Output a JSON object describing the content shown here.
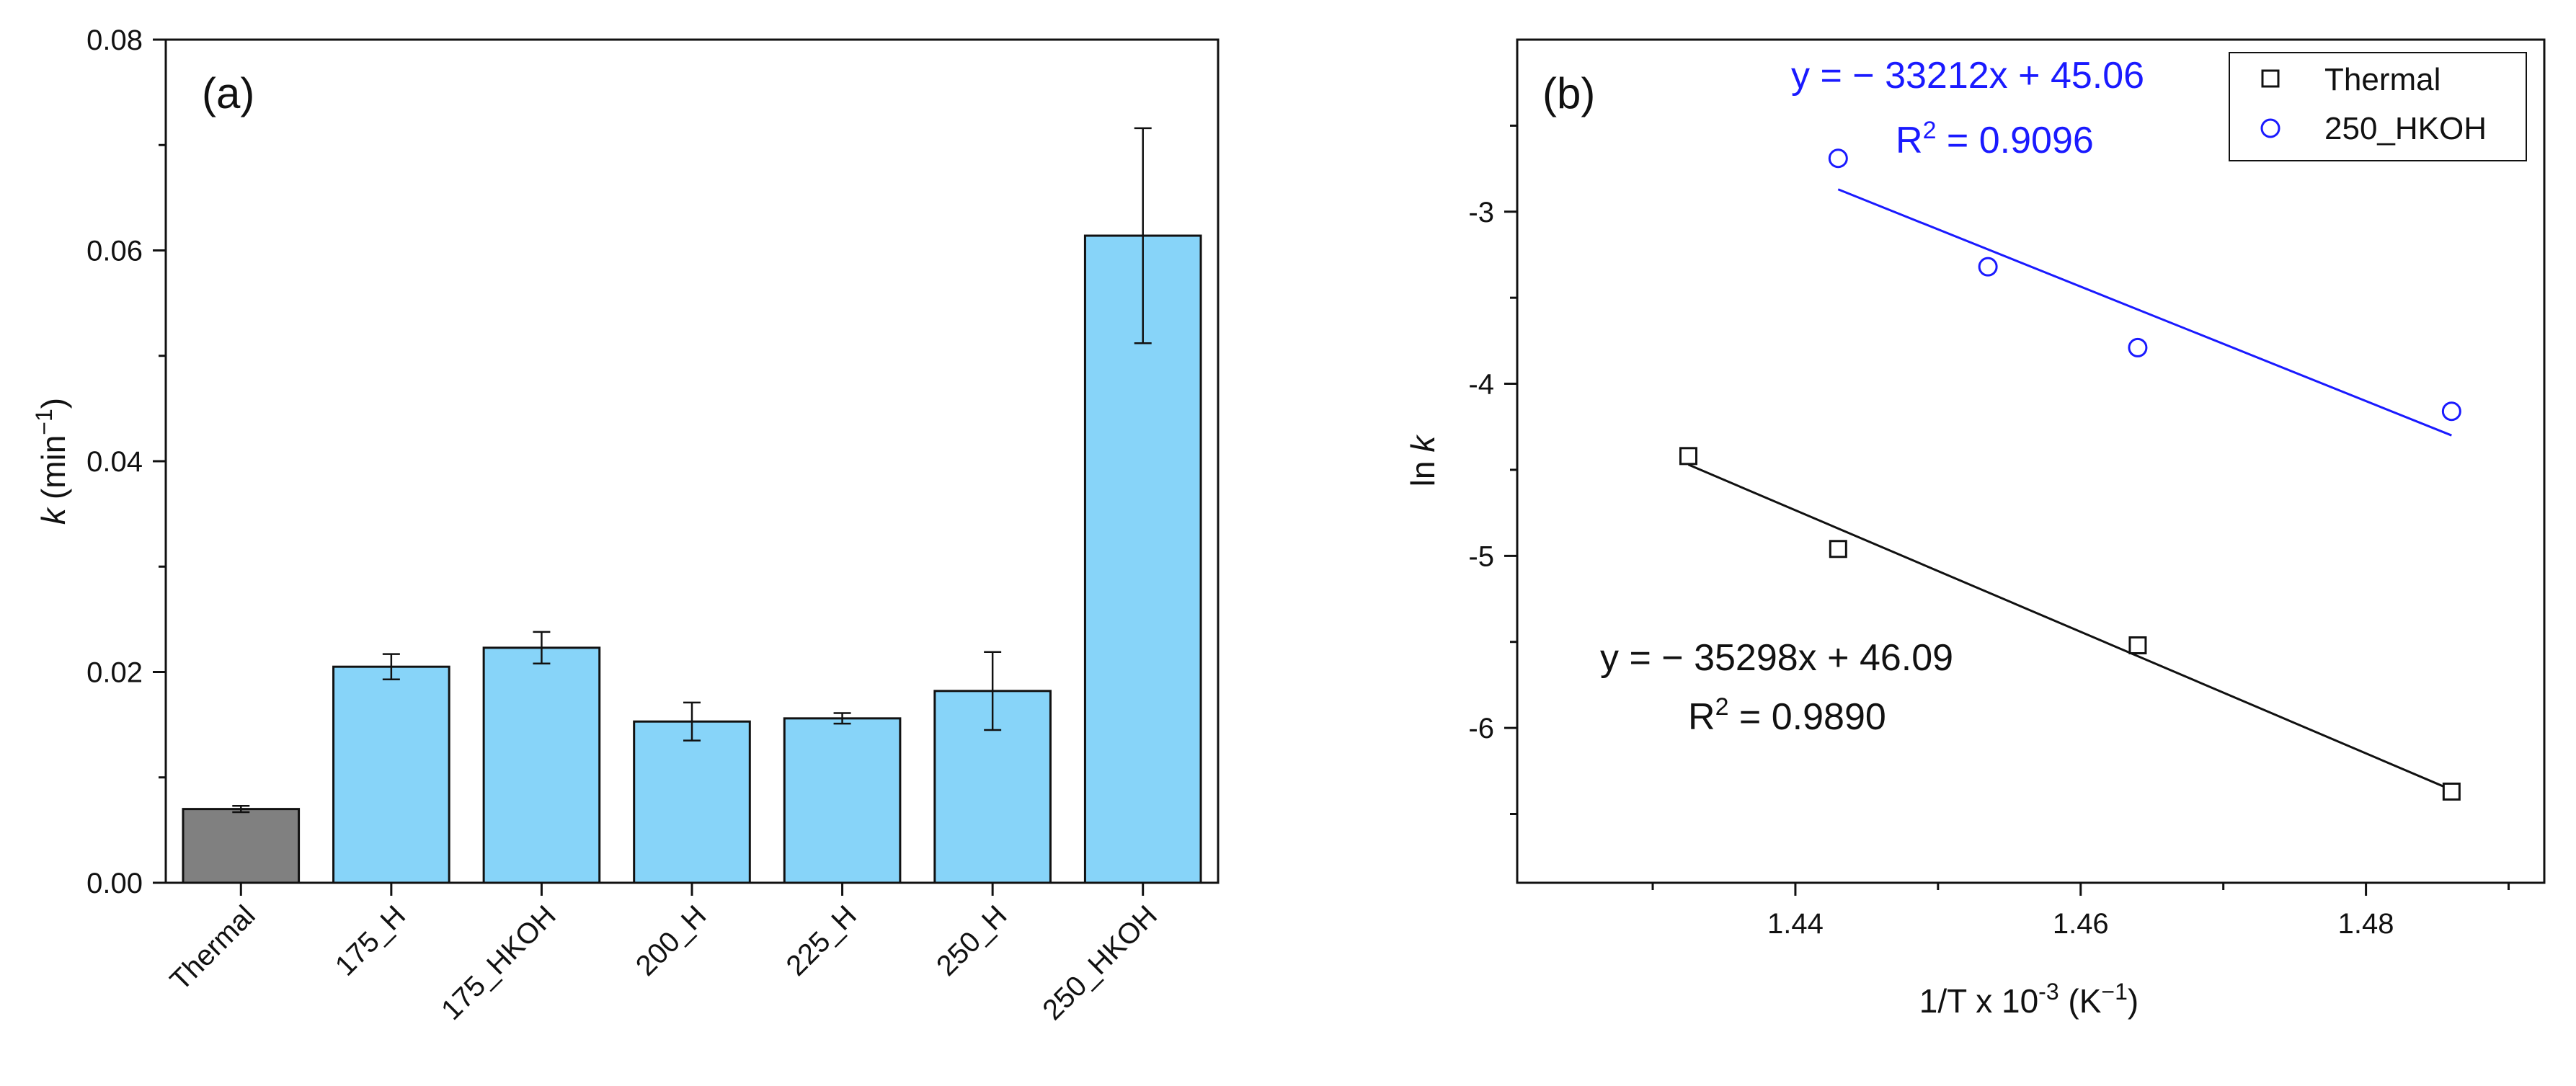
{
  "panels": {
    "a_label": "(a)",
    "b_label": "(b)"
  },
  "chart_data": [
    {
      "type": "bar",
      "title": "",
      "categories": [
        "Thermal",
        "175_H",
        "175_HKOH",
        "200_H",
        "225_H",
        "250_H",
        "250_HKOH"
      ],
      "values": [
        0.007,
        0.0205,
        0.0223,
        0.0153,
        0.0156,
        0.0182,
        0.0614
      ],
      "errors": [
        0.0003,
        0.0012,
        0.0015,
        0.0018,
        0.0005,
        0.0037,
        0.0102
      ],
      "bar_colors": [
        "#808080",
        "#87d4f9",
        "#87d4f9",
        "#87d4f9",
        "#87d4f9",
        "#87d4f9",
        "#87d4f9"
      ],
      "ylim": [
        0,
        0.08
      ],
      "yticks": [
        "0.00",
        "0.02",
        "0.04",
        "0.06",
        "0.08"
      ],
      "ytick_values": [
        0,
        0.02,
        0.04,
        0.06,
        0.08
      ],
      "xlabel": "",
      "ylabel_symbol": "k",
      "ylabel_unit_open": "(min",
      "ylabel_unit_exp": "−1",
      "ylabel_unit_close": ")"
    },
    {
      "type": "scatter",
      "title": "",
      "xlim": [
        1.4205,
        1.4925
      ],
      "ylim": [
        -6.9,
        -2.0
      ],
      "xticks": [
        "1.44",
        "1.46",
        "1.48"
      ],
      "xtick_values": [
        1.44,
        1.46,
        1.48
      ],
      "yticks": [
        "-3",
        "-4",
        "-5",
        "-6"
      ],
      "ytick_values": [
        -3,
        -4,
        -5,
        -6
      ],
      "xlabel_main": "1/T x 10",
      "xlabel_exp": "-3",
      "xlabel_unit_open": " (K",
      "xlabel_unit_exp": "−1",
      "xlabel_unit_close": ")",
      "ylabel_prefix": "ln",
      "ylabel_symbol": "k",
      "legend_position": "top-right",
      "series": [
        {
          "name": "Thermal",
          "marker": "square",
          "color": "#111111",
          "x": [
            1.4325,
            1.443,
            1.464,
            1.486
          ],
          "y": [
            -4.42,
            -4.96,
            -5.52,
            -6.37
          ],
          "fit_x": [
            1.4325,
            1.486
          ],
          "fit_y": [
            -4.47,
            -6.36
          ],
          "fit_equation": "y = − 35298x + 46.09",
          "r2_symbol": "R",
          "r2_exp": "2",
          "r2_value": " = 0.9890"
        },
        {
          "name": "250_HKOH",
          "marker": "circle",
          "color": "#1a1aff",
          "x": [
            1.443,
            1.4535,
            1.464,
            1.486
          ],
          "y": [
            -2.69,
            -3.32,
            -3.79,
            -4.16
          ],
          "fit_x": [
            1.443,
            1.486
          ],
          "fit_y": [
            -2.87,
            -4.3
          ],
          "fit_equation": "y = − 33212x + 45.06",
          "r2_symbol": "R",
          "r2_exp": "2",
          "r2_value": " = 0.9096"
        }
      ]
    }
  ]
}
